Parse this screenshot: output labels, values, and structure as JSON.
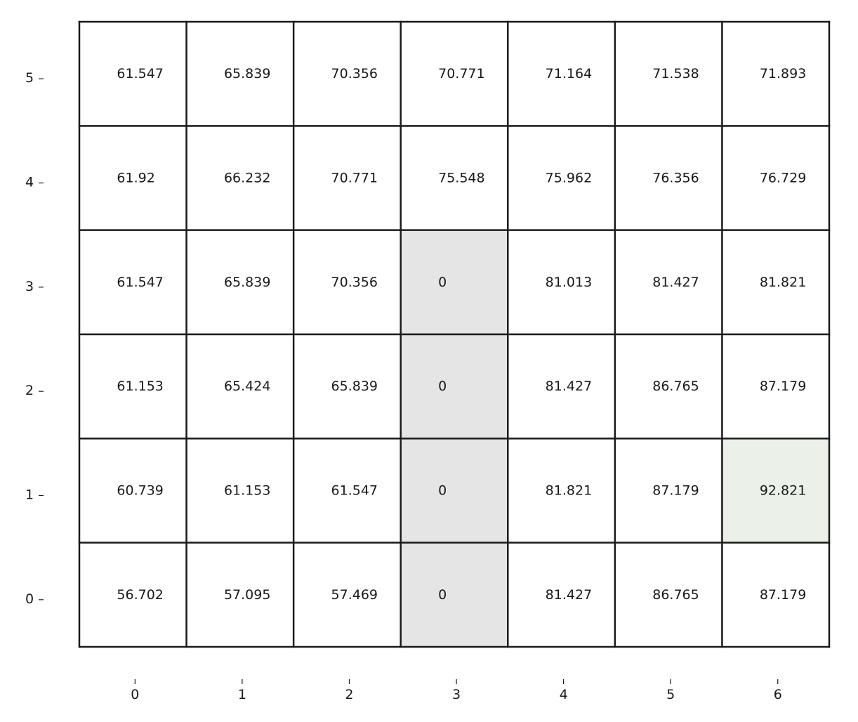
{
  "chart_data": {
    "type": "heatmap",
    "title": "",
    "xlabel": "",
    "ylabel": "",
    "x_ticks": [
      "0",
      "1",
      "2",
      "3",
      "4",
      "5",
      "6"
    ],
    "y_ticks": [
      "0",
      "1",
      "2",
      "3",
      "4",
      "5"
    ],
    "grid": true,
    "rows": [
      {
        "y": 5,
        "values": [
          "61.547",
          "65.839",
          "70.356",
          "70.771",
          "71.164",
          "71.538",
          "71.893"
        ]
      },
      {
        "y": 4,
        "values": [
          "61.92",
          "66.232",
          "70.771",
          "75.548",
          "75.962",
          "76.356",
          "76.729"
        ]
      },
      {
        "y": 3,
        "values": [
          "61.547",
          "65.839",
          "70.356",
          "0",
          "81.013",
          "81.427",
          "81.821"
        ]
      },
      {
        "y": 2,
        "values": [
          "61.153",
          "65.424",
          "65.839",
          "0",
          "81.427",
          "86.765",
          "87.179"
        ]
      },
      {
        "y": 1,
        "values": [
          "60.739",
          "61.153",
          "61.547",
          "0",
          "81.821",
          "87.179",
          "92.821"
        ]
      },
      {
        "y": 0,
        "values": [
          "56.702",
          "57.095",
          "57.469",
          "0",
          "81.427",
          "86.765",
          "87.179"
        ]
      }
    ],
    "obstacle_cells": [
      [
        3,
        0
      ],
      [
        3,
        1
      ],
      [
        3,
        2
      ],
      [
        3,
        3
      ]
    ],
    "goal_cells": [
      [
        6,
        1
      ]
    ],
    "colors": {
      "background": "#ffffff",
      "obstacle": "#e5e5e5",
      "goal": "#ebf1e8",
      "gridline": "#1a1a1a",
      "text": "#1a1a1a"
    }
  }
}
